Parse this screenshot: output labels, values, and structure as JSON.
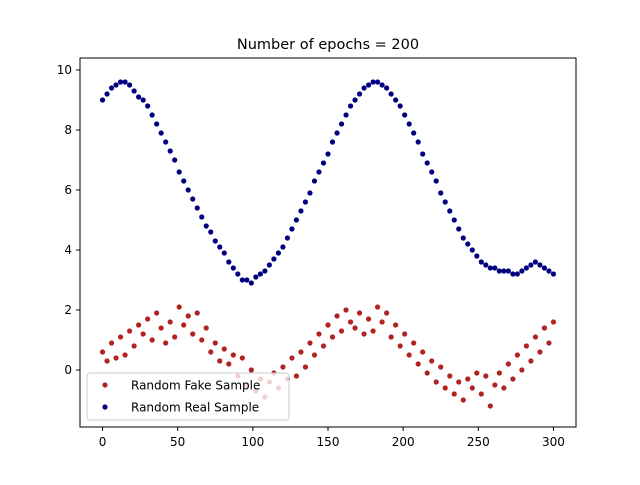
{
  "chart_data": {
    "type": "scatter",
    "title": "Number of epochs = 200",
    "xlabel": "",
    "ylabel": "",
    "xlim": [
      -15,
      315
    ],
    "ylim": [
      -1.9,
      10.4
    ],
    "xticks": [
      0,
      50,
      100,
      150,
      200,
      250,
      300
    ],
    "yticks": [
      0,
      2,
      4,
      6,
      8,
      10
    ],
    "grid": false,
    "legend_position": "lower-left",
    "series": [
      {
        "name": "Random Fake Sample",
        "color": "#b22222",
        "x": [
          0,
          3,
          6,
          9,
          12,
          15,
          18,
          21,
          24,
          27,
          30,
          33,
          36,
          39,
          42,
          45,
          48,
          51,
          54,
          57,
          60,
          63,
          66,
          69,
          72,
          75,
          78,
          81,
          84,
          87,
          90,
          93,
          96,
          99,
          102,
          105,
          108,
          111,
          114,
          117,
          120,
          123,
          126,
          129,
          132,
          135,
          138,
          141,
          144,
          147,
          150,
          153,
          156,
          159,
          162,
          165,
          168,
          171,
          174,
          177,
          180,
          183,
          186,
          189,
          192,
          195,
          198,
          201,
          204,
          207,
          210,
          213,
          216,
          219,
          222,
          225,
          228,
          231,
          234,
          237,
          240,
          243,
          246,
          249,
          252,
          255,
          258,
          261,
          264,
          267,
          270,
          273,
          276,
          279,
          282,
          285,
          288,
          291,
          294,
          297,
          300
        ],
        "y": [
          0.6,
          0.3,
          0.9,
          0.4,
          1.1,
          0.5,
          1.3,
          0.8,
          1.5,
          1.2,
          1.7,
          1.0,
          1.9,
          1.4,
          0.9,
          1.6,
          1.1,
          2.1,
          1.5,
          1.8,
          1.2,
          1.9,
          1.0,
          1.4,
          0.6,
          0.9,
          0.3,
          0.7,
          0.2,
          0.5,
          -0.2,
          0.4,
          -0.5,
          0.0,
          -0.7,
          -0.3,
          -0.9,
          -0.4,
          -0.1,
          -0.6,
          0.1,
          -0.3,
          0.4,
          -0.2,
          0.6,
          0.1,
          0.9,
          0.5,
          1.2,
          0.8,
          1.5,
          1.1,
          1.8,
          1.3,
          2.0,
          1.6,
          1.4,
          1.9,
          1.2,
          1.7,
          1.3,
          2.1,
          1.6,
          1.9,
          1.1,
          1.5,
          0.8,
          1.2,
          0.5,
          0.9,
          0.2,
          0.6,
          -0.1,
          0.3,
          -0.4,
          0.1,
          -0.6,
          -0.2,
          -0.8,
          -0.4,
          -1.0,
          -0.3,
          -0.6,
          -0.1,
          -0.8,
          -0.2,
          -1.2,
          -0.5,
          -0.1,
          -0.6,
          0.2,
          -0.3,
          0.5,
          0.0,
          0.8,
          0.3,
          1.1,
          0.6,
          1.4,
          0.9,
          1.6
        ]
      },
      {
        "name": "Random Real Sample",
        "color": "#000080",
        "x": [
          0,
          3,
          6,
          9,
          12,
          15,
          18,
          21,
          24,
          27,
          30,
          33,
          36,
          39,
          42,
          45,
          48,
          51,
          54,
          57,
          60,
          63,
          66,
          69,
          72,
          75,
          78,
          81,
          84,
          87,
          90,
          93,
          96,
          99,
          102,
          105,
          108,
          111,
          114,
          117,
          120,
          123,
          126,
          129,
          132,
          135,
          138,
          141,
          144,
          147,
          150,
          153,
          156,
          159,
          162,
          165,
          168,
          171,
          174,
          177,
          180,
          183,
          186,
          189,
          192,
          195,
          198,
          201,
          204,
          207,
          210,
          213,
          216,
          219,
          222,
          225,
          228,
          231,
          234,
          237,
          240,
          243,
          246,
          249,
          252,
          255,
          258,
          261,
          264,
          267,
          270,
          273,
          276,
          279,
          282,
          285,
          288,
          291,
          294,
          297,
          300
        ],
        "y": [
          9.0,
          9.2,
          9.4,
          9.5,
          9.6,
          9.6,
          9.5,
          9.3,
          9.1,
          9.0,
          8.8,
          8.5,
          8.2,
          7.9,
          7.6,
          7.3,
          7.0,
          6.6,
          6.3,
          6.0,
          5.7,
          5.4,
          5.1,
          4.8,
          4.6,
          4.3,
          4.1,
          3.9,
          3.6,
          3.4,
          3.2,
          3.0,
          3.0,
          2.9,
          3.1,
          3.2,
          3.3,
          3.5,
          3.7,
          3.9,
          4.1,
          4.4,
          4.7,
          5.0,
          5.3,
          5.6,
          5.9,
          6.3,
          6.6,
          6.9,
          7.2,
          7.6,
          7.9,
          8.2,
          8.5,
          8.8,
          9.0,
          9.2,
          9.4,
          9.5,
          9.6,
          9.6,
          9.5,
          9.4,
          9.2,
          9.0,
          8.8,
          8.5,
          8.2,
          7.9,
          7.6,
          7.2,
          6.9,
          6.6,
          6.3,
          5.9,
          5.6,
          5.3,
          5.0,
          4.7,
          4.4,
          4.2,
          4.0,
          3.8,
          3.6,
          3.5,
          3.4,
          3.4,
          3.3,
          3.3,
          3.3,
          3.2,
          3.2,
          3.3,
          3.4,
          3.5,
          3.6,
          3.5,
          3.4,
          3.3,
          3.2
        ]
      }
    ]
  }
}
